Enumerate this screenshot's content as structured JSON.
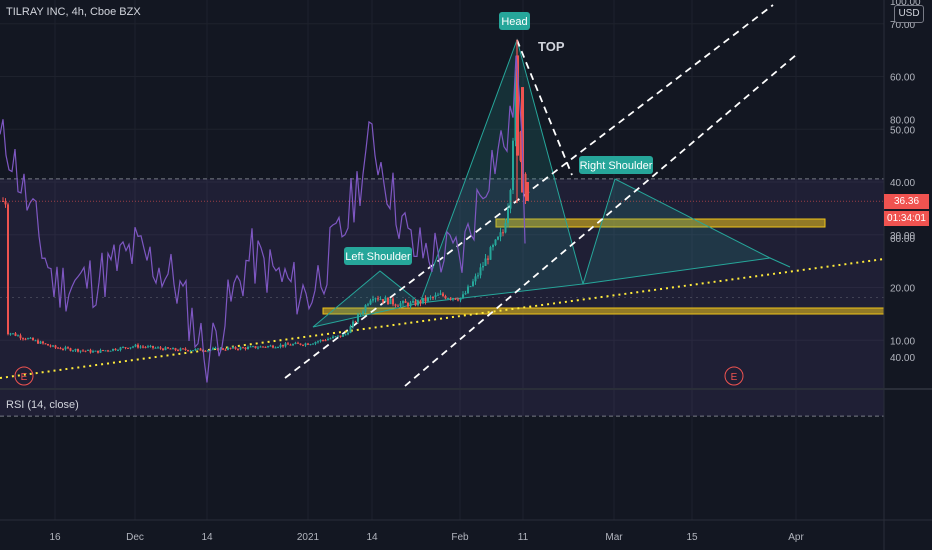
{
  "header": {
    "title": "TILRAY INC, 4h, Cboe BZX"
  },
  "rsi": {
    "label": "RSI (14, close)",
    "upper": 70,
    "lower": 30
  },
  "axis": {
    "currency": "USD",
    "last_price": "36.36",
    "countdown": "01:34:01",
    "price_ticks": [
      "10.00",
      "20.00",
      "30.00",
      "40.00",
      "50.00",
      "60.00",
      "70.00"
    ],
    "rsi_ticks": [
      "40.00",
      "60.00",
      "80.00",
      "100.00"
    ],
    "time_ticks": [
      "16",
      "Dec",
      "14",
      "2021",
      "14",
      "Feb",
      "11",
      "Mar",
      "15",
      "Apr"
    ]
  },
  "annotations": {
    "head": "Head",
    "top": "TOP",
    "left_shoulder": "Left Shoulder",
    "right_shoulder": "Right Shoulder",
    "earnings": "E"
  },
  "colors": {
    "background": "#131722",
    "up": "#26a69a",
    "down": "#ef5350",
    "rsi": "#7e57c2",
    "pattern": "#26a69a",
    "zone": "#f0c419",
    "trendline": "#ffeb3b",
    "price_tag": "#f05350"
  },
  "chart_data": {
    "type": "candlestick",
    "symbol": "TILRAY INC",
    "interval": "4h",
    "exchange": "Cboe BZX",
    "x_ticks": [
      "16",
      "Dec",
      "14",
      "2021",
      "14",
      "Feb",
      "11",
      "Mar",
      "15",
      "Apr"
    ],
    "ylim": [
      0,
      73
    ],
    "last_price": 36.36,
    "price_path": [
      [
        "Nov 9",
        11.5
      ],
      [
        "Nov 16",
        8.6
      ],
      [
        "Nov 23",
        7.8
      ],
      [
        "Dec 1",
        8.9
      ],
      [
        "Dec 8",
        8.2
      ],
      [
        "Dec 14",
        8.2
      ],
      [
        "Dec 21",
        8.6
      ],
      [
        "Jan 1",
        9.4
      ],
      [
        "Jan 7",
        11.0
      ],
      [
        "Jan 12",
        15.5
      ],
      [
        "Jan 14",
        18.5
      ],
      [
        "Jan 19",
        17.0
      ],
      [
        "Jan 22",
        16.8
      ],
      [
        "Jan 27",
        18.5
      ],
      [
        "Feb 1",
        18.0
      ],
      [
        "Feb 3",
        21.5
      ],
      [
        "Feb 5",
        26.0
      ],
      [
        "Feb 8",
        30.5
      ],
      [
        "Feb 9",
        38.0
      ],
      [
        "Feb 10",
        64.0
      ],
      [
        "Feb 10",
        50.0
      ],
      [
        "Feb 11",
        36.4
      ]
    ],
    "rsi_path": [
      [
        "Nov 9",
        76
      ],
      [
        "Nov 16",
        52
      ],
      [
        "Nov 23",
        53
      ],
      [
        "Dec 1",
        58
      ],
      [
        "Dec 8",
        53
      ],
      [
        "Dec 14",
        40
      ],
      [
        "Dec 21",
        57
      ],
      [
        "Jan 1",
        50
      ],
      [
        "Jan 7",
        62
      ],
      [
        "Jan 14",
        77
      ],
      [
        "Jan 22",
        58
      ],
      [
        "Feb 1",
        57
      ],
      [
        "Feb 5",
        72
      ],
      [
        "Feb 9",
        78
      ],
      [
        "Feb 10",
        91
      ],
      [
        "Feb 11",
        55
      ]
    ]
  }
}
